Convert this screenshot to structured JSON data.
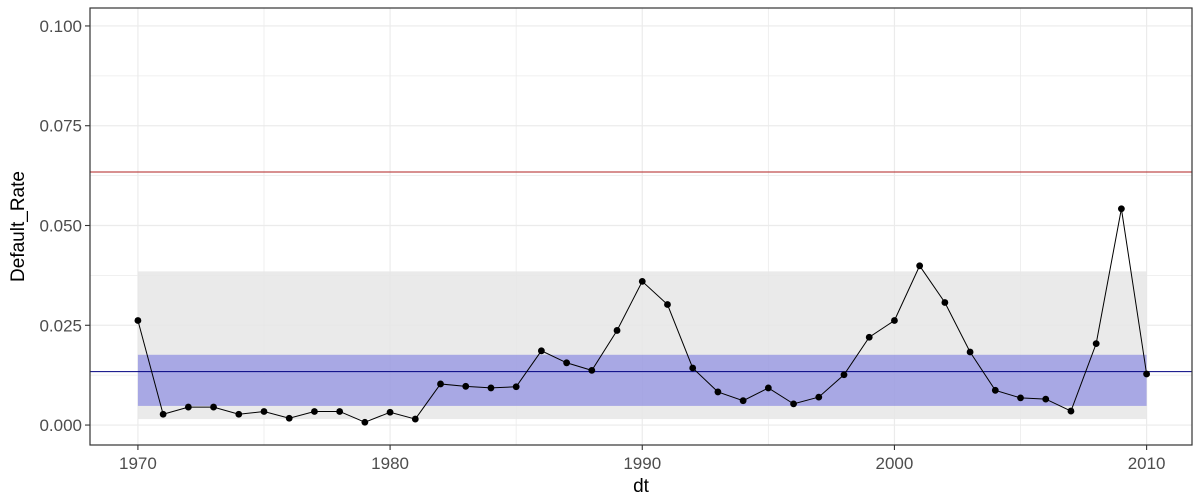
{
  "chart_data": {
    "type": "line",
    "title": "",
    "xlabel": "dt",
    "ylabel": "Default_Rate",
    "xlim": [
      1968.1,
      2011.8
    ],
    "ylim": [
      -0.005,
      0.1045
    ],
    "x_ticks": [
      1970,
      1980,
      1990,
      2000,
      2010
    ],
    "y_ticks": [
      0.0,
      0.025,
      0.05,
      0.075,
      0.1
    ],
    "y_tick_labels": [
      "0.000",
      "0.025",
      "0.050",
      "0.075",
      "0.100"
    ],
    "grid": true,
    "x": [
      1970,
      1971,
      1972,
      1973,
      1974,
      1975,
      1976,
      1977,
      1978,
      1979,
      1980,
      1981,
      1982,
      1983,
      1984,
      1985,
      1986,
      1987,
      1988,
      1989,
      1990,
      1991,
      1992,
      1993,
      1994,
      1995,
      1996,
      1997,
      1998,
      1999,
      2000,
      2001,
      2002,
      2003,
      2004,
      2005,
      2006,
      2007,
      2008,
      2009,
      2010
    ],
    "series": [
      {
        "values": [
          0.0262,
          0.0027,
          0.0045,
          0.0045,
          0.0027,
          0.0034,
          0.0017,
          0.0034,
          0.0034,
          0.0007,
          0.0032,
          0.0015,
          0.0103,
          0.0097,
          0.0093,
          0.0096,
          0.0186,
          0.0156,
          0.0137,
          0.0237,
          0.036,
          0.0302,
          0.0143,
          0.0083,
          0.0061,
          0.0093,
          0.0053,
          0.007,
          0.0126,
          0.022,
          0.0262,
          0.0399,
          0.0307,
          0.0183,
          0.0087,
          0.0068,
          0.0065,
          0.0035,
          0.0204,
          0.0542,
          0.0128
        ]
      }
    ],
    "reference_lines": [
      {
        "y": 0.0634,
        "color": "#b22222"
      },
      {
        "y": 0.0134,
        "color": "#000080"
      }
    ],
    "bands": [
      {
        "x": [
          1970,
          2010
        ],
        "y": [
          0.0015,
          0.0385
        ],
        "color": "#e6e6e6",
        "opacity": 0.85
      },
      {
        "x": [
          1970,
          2010
        ],
        "y": [
          0.0048,
          0.0176
        ],
        "color": "#6666dd",
        "opacity": 0.5
      }
    ],
    "colors": {
      "line": "#000000",
      "points": "#000000",
      "grid": "#ebebeb",
      "panel_border": "#333333"
    }
  }
}
